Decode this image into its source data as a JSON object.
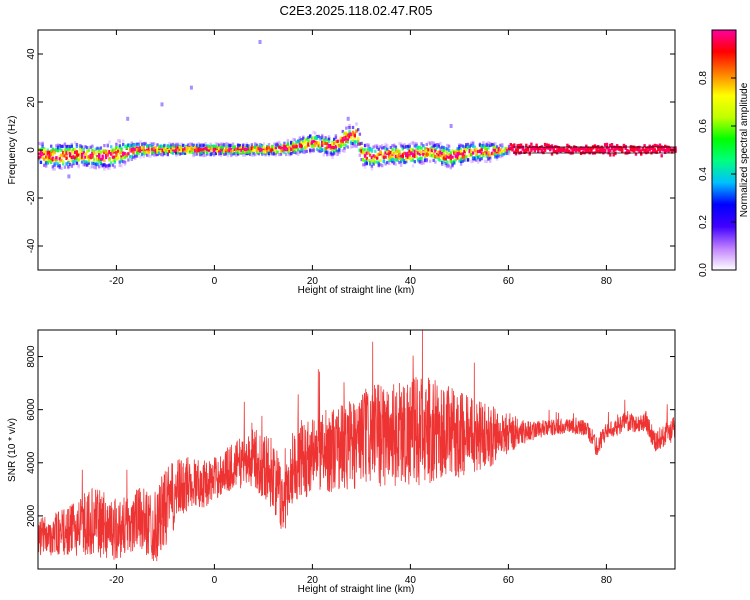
{
  "chart_data": [
    {
      "type": "heatmap",
      "title": "C2E3.2025.118.02.47.R05",
      "xlabel": "Height of straight line (km)",
      "ylabel": "Frequency (Hz)",
      "xlim": [
        -36,
        94
      ],
      "ylim": [
        -50,
        50
      ],
      "x_ticks": [
        -20,
        0,
        20,
        40,
        60,
        80
      ],
      "x_tick_labels": [
        "-20",
        "0",
        "20",
        "40",
        "60",
        "80"
      ],
      "y_ticks": [
        -40,
        -20,
        0,
        20,
        40
      ],
      "y_tick_labels": [
        "-40",
        "-20",
        "0",
        "20",
        "40"
      ],
      "colorbar": {
        "label": "Normalized spectral amplitude",
        "range": [
          0,
          1
        ],
        "ticks": [
          0.0,
          0.2,
          0.4,
          0.6,
          0.8
        ],
        "tick_labels": [
          "0.0",
          "0.2",
          "0.4",
          "0.6",
          "0.8"
        ],
        "colors": [
          "#ffffff",
          "#c080ff",
          "#4000ff",
          "#0000ff",
          "#00c0ff",
          "#00ff80",
          "#00ff00",
          "#c0ff00",
          "#ffff00",
          "#ff8000",
          "#ff0000",
          "#ff00a0"
        ]
      },
      "ridge": {
        "x": [
          -36,
          -32,
          -28,
          -24,
          -20,
          -16,
          -12,
          -8,
          -4,
          0,
          4,
          8,
          12,
          16,
          20,
          22,
          24,
          26,
          28,
          29,
          30,
          32,
          36,
          40,
          44,
          48,
          52,
          56,
          60,
          64,
          70,
          80,
          94
        ],
        "freq": [
          -2,
          -3,
          -2,
          -3,
          -2,
          0,
          0,
          0,
          0,
          0,
          0,
          0,
          0,
          1,
          3,
          2,
          1,
          4,
          6,
          6,
          -2,
          -3,
          -2,
          -2,
          -1,
          -3,
          -1,
          -1,
          0,
          0,
          0,
          0,
          0
        ],
        "spread": [
          6,
          7,
          6,
          6,
          7,
          4,
          3,
          3,
          3,
          3,
          3,
          3,
          3,
          4,
          5,
          5,
          5,
          6,
          6,
          6,
          6,
          6,
          5,
          6,
          5,
          6,
          5,
          5,
          2,
          1.5,
          1.5,
          1.5,
          1.5
        ]
      },
      "reference_line_hz": 0
    },
    {
      "type": "line",
      "xlabel": "Height of straight line (km)",
      "ylabel": "SNR (10 * v/v)",
      "xlim": [
        -36,
        94
      ],
      "ylim": [
        0,
        9000
      ],
      "x_ticks": [
        -20,
        0,
        20,
        40,
        60,
        80
      ],
      "x_tick_labels": [
        "-20",
        "0",
        "20",
        "40",
        "60",
        "80"
      ],
      "y_ticks": [
        2000,
        4000,
        6000,
        8000
      ],
      "y_tick_labels": [
        "2000",
        "4000",
        "6000",
        "8000"
      ],
      "line_color": "#ee3333",
      "envelope": {
        "x": [
          -36,
          -30,
          -25,
          -20,
          -15,
          -12,
          -10,
          -8,
          -5,
          -2,
          0,
          4,
          8,
          12,
          14,
          16,
          20,
          24,
          28,
          32,
          36,
          40,
          44,
          48,
          52,
          56,
          60,
          64,
          68,
          72,
          76,
          78,
          80,
          82,
          84,
          86,
          88,
          90,
          94
        ],
        "center": [
          1200,
          1400,
          1800,
          1500,
          1900,
          1600,
          2300,
          2800,
          3300,
          3200,
          3400,
          3900,
          4200,
          3600,
          2400,
          3900,
          4300,
          4500,
          4700,
          5000,
          5100,
          5200,
          5200,
          5100,
          5100,
          5000,
          5100,
          5200,
          5300,
          5400,
          5300,
          4600,
          5200,
          5300,
          5600,
          5400,
          5600,
          4800,
          5300
        ],
        "amp": [
          700,
          900,
          1300,
          1200,
          1200,
          1400,
          1500,
          1300,
          1000,
          900,
          800,
          900,
          1100,
          1400,
          1200,
          1400,
          1500,
          1600,
          1800,
          1900,
          2000,
          2100,
          2000,
          1800,
          1500,
          1200,
          800,
          400,
          300,
          300,
          300,
          400,
          300,
          300,
          400,
          300,
          400,
          400,
          500
        ]
      }
    }
  ]
}
